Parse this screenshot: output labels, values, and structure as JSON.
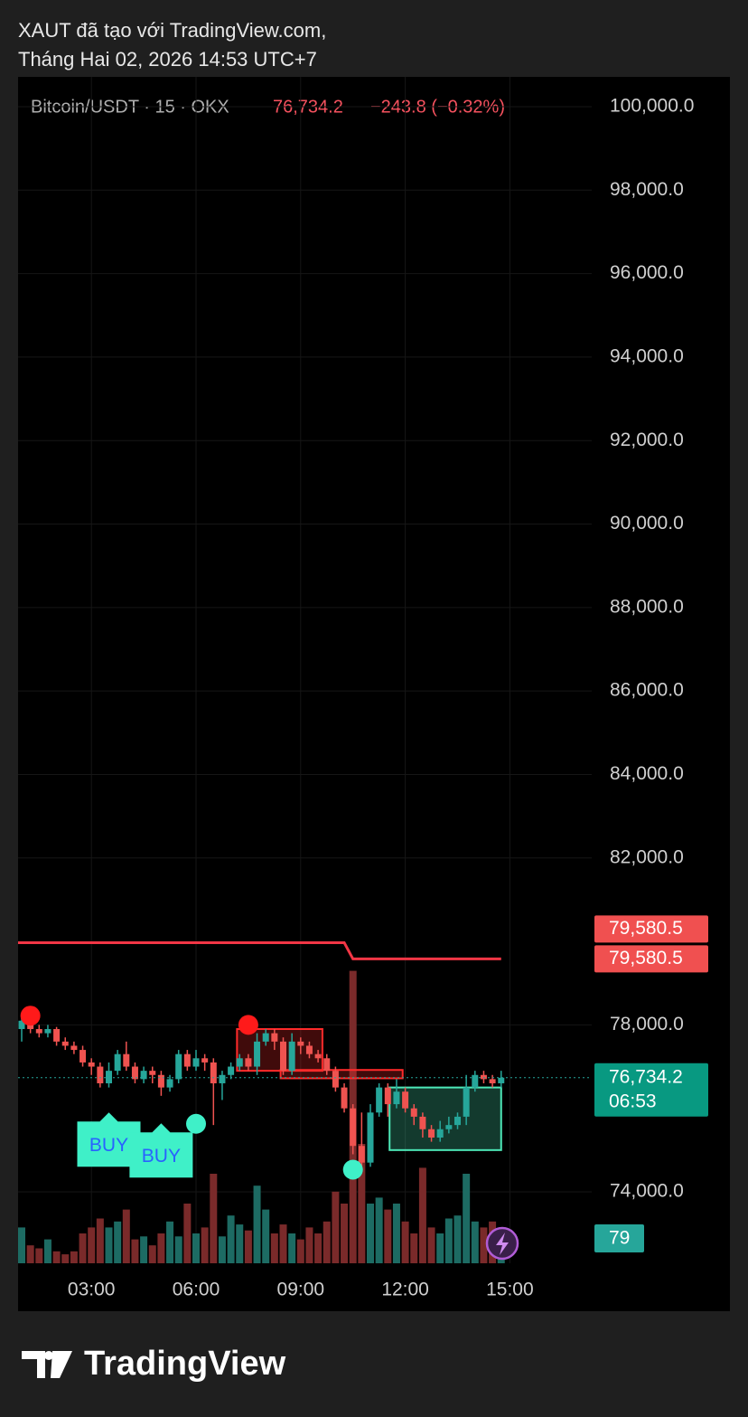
{
  "chart_data": {
    "type": "candlestick",
    "header": [
      "XAUT đã tạo với TradingView.com,",
      "Tháng Hai 02, 2026 14:53 UTC+7"
    ],
    "symbol": "Bitcoin/USDT · 15 · OKX",
    "last_price": 76734.2,
    "last_price_label": "76,734.2",
    "change_label": "−243.8 (−0.32%)",
    "countdown": "06:53",
    "volume_label": "79",
    "brand": "TradingView",
    "ylim": [
      72288,
      100715
    ],
    "yticks": [
      {
        "value": 74000,
        "label": "74,000.0"
      },
      {
        "value": 78000,
        "label": "78,000.0"
      },
      {
        "value": 82000,
        "label": "82,000.0"
      },
      {
        "value": 84000,
        "label": "84,000.0"
      },
      {
        "value": 86000,
        "label": "86,000.0"
      },
      {
        "value": 88000,
        "label": "88,000.0"
      },
      {
        "value": 90000,
        "label": "90,000.0"
      },
      {
        "value": 92000,
        "label": "92,000.0"
      },
      {
        "value": 94000,
        "label": "94,000.0"
      },
      {
        "value": 96000,
        "label": "96,000.0"
      },
      {
        "value": 98000,
        "label": "98,000.0"
      },
      {
        "value": 100000,
        "label": "100,000.0"
      }
    ],
    "xlim": [
      -0.4,
      65
    ],
    "xticks": [
      {
        "value": 8,
        "label": "03:00"
      },
      {
        "value": 20,
        "label": "06:00"
      },
      {
        "value": 32,
        "label": "09:00"
      },
      {
        "value": 44,
        "label": "12:00"
      },
      {
        "value": 56,
        "label": "15:00"
      }
    ],
    "up_color": "#26a69a",
    "down_color": "#ef5350",
    "candles": [
      [
        77900,
        78200,
        77600,
        78100
      ],
      [
        78000,
        78100,
        77800,
        77900
      ],
      [
        77900,
        78000,
        77700,
        77800
      ],
      [
        77800,
        78000,
        77700,
        77900
      ],
      [
        77900,
        77950,
        77500,
        77600
      ],
      [
        77600,
        77700,
        77400,
        77500
      ],
      [
        77500,
        77600,
        77300,
        77400
      ],
      [
        77400,
        77500,
        77000,
        77100
      ],
      [
        77100,
        77200,
        76800,
        77000
      ],
      [
        77000,
        77100,
        76500,
        76600
      ],
      [
        76600,
        77100,
        76500,
        76900
      ],
      [
        76900,
        77400,
        76800,
        77300
      ],
      [
        77300,
        77600,
        76900,
        77000
      ],
      [
        77000,
        77100,
        76600,
        76700
      ],
      [
        76700,
        77000,
        76600,
        76900
      ],
      [
        76900,
        77000,
        76600,
        76800
      ],
      [
        76800,
        76900,
        76300,
        76500
      ],
      [
        76500,
        76800,
        76400,
        76700
      ],
      [
        76700,
        77400,
        76600,
        77300
      ],
      [
        77300,
        77400,
        76900,
        77000
      ],
      [
        77000,
        77400,
        76900,
        77200
      ],
      [
        77200,
        77300,
        76900,
        77100
      ],
      [
        77100,
        77200,
        75600,
        76600
      ],
      [
        76600,
        76900,
        76200,
        76800
      ],
      [
        76800,
        77100,
        76700,
        77000
      ],
      [
        77000,
        77300,
        76900,
        77200
      ],
      [
        77200,
        77300,
        76900,
        77000
      ],
      [
        77000,
        77800,
        76800,
        77600
      ],
      [
        77600,
        77900,
        77500,
        77800
      ],
      [
        77800,
        77900,
        77400,
        77600
      ],
      [
        77600,
        77700,
        76800,
        76900
      ],
      [
        76900,
        77800,
        76800,
        77600
      ],
      [
        77600,
        77700,
        77300,
        77500
      ],
      [
        77500,
        77600,
        77200,
        77300
      ],
      [
        77300,
        77400,
        77100,
        77200
      ],
      [
        77200,
        77300,
        76800,
        76900
      ],
      [
        76900,
        77000,
        76400,
        76500
      ],
      [
        76500,
        76600,
        75900,
        76000
      ],
      [
        76000,
        76100,
        74900,
        75100
      ],
      [
        75100,
        75900,
        74500,
        74700
      ],
      [
        74700,
        76100,
        74600,
        75900
      ],
      [
        75900,
        76600,
        75800,
        76500
      ],
      [
        76500,
        76600,
        75800,
        76100
      ],
      [
        76100,
        76700,
        76000,
        76400
      ],
      [
        76400,
        76500,
        75900,
        76000
      ],
      [
        76000,
        76100,
        75600,
        75800
      ],
      [
        75800,
        75900,
        75300,
        75500
      ],
      [
        75500,
        75600,
        75200,
        75300
      ],
      [
        75300,
        75700,
        75200,
        75500
      ],
      [
        75500,
        75800,
        75400,
        75600
      ],
      [
        75600,
        75900,
        75500,
        75800
      ],
      [
        75800,
        76800,
        75600,
        76500
      ],
      [
        76500,
        76900,
        76400,
        76800
      ],
      [
        76800,
        76900,
        76600,
        76700
      ],
      [
        76700,
        76800,
        76500,
        76600
      ],
      [
        76600,
        76900,
        76500,
        76734.2
      ]
    ],
    "volume": [
      12,
      6,
      5,
      8,
      4,
      3,
      4,
      10,
      12,
      15,
      12,
      14,
      18,
      8,
      9,
      6,
      10,
      14,
      9,
      20,
      10,
      12,
      30,
      9,
      16,
      13,
      11,
      26,
      18,
      10,
      13,
      10,
      8,
      12,
      10,
      14,
      24,
      20,
      98,
      40,
      20,
      22,
      18,
      20,
      14,
      10,
      32,
      12,
      10,
      15,
      16,
      30,
      14,
      12,
      14,
      4
    ],
    "vlim": [
      0,
      100
    ],
    "line": {
      "color": "#f23645",
      "label": "79,580.5",
      "values": [
        79970,
        79970,
        79970,
        79970,
        79970,
        79970,
        79970,
        79970,
        79970,
        79970,
        79970,
        79970,
        79970,
        79970,
        79970,
        79970,
        79970,
        79970,
        79970,
        79970,
        79970,
        79970,
        79970,
        79970,
        79970,
        79970,
        79970,
        79970,
        79970,
        79970,
        79970,
        79970,
        79970,
        79970,
        79970,
        79970,
        79970,
        79970,
        79580.5,
        79580.5,
        79580.5,
        79580.5,
        79580.5,
        79580.5,
        79580.5,
        79580.5,
        79580.5,
        79580.5,
        79580.5,
        79580.5,
        79580.5,
        79580.5,
        79580.5,
        79580.5,
        79580.5,
        79580.5
      ]
    },
    "second_label": "79,580.5",
    "zones": [
      {
        "from": 24.7,
        "to": 34.5,
        "top": 77900,
        "bottom": 76900,
        "color": "#ff2a2a"
      },
      {
        "from": 29.7,
        "to": 43.7,
        "top": 76920,
        "bottom": 76720,
        "color": "#ff2a2a"
      },
      {
        "from": 42.2,
        "to": 55,
        "top": 76500,
        "bottom": 75000,
        "color": "#4de8b8"
      }
    ],
    "dots": [
      {
        "index": 1,
        "price": 78220,
        "color": "#ff1a1a"
      },
      {
        "index": 26,
        "price": 78000,
        "color": "#ff1a1a"
      },
      {
        "index": 20,
        "price": 75630,
        "color": "#3ff0c8"
      },
      {
        "index": 38,
        "price": 74530,
        "color": "#3ff0c8"
      }
    ],
    "buy_labels": [
      {
        "text": "BUY",
        "index": 10,
        "price": 75100
      },
      {
        "text": "BUY",
        "index": 16,
        "price": 74840
      }
    ]
  }
}
